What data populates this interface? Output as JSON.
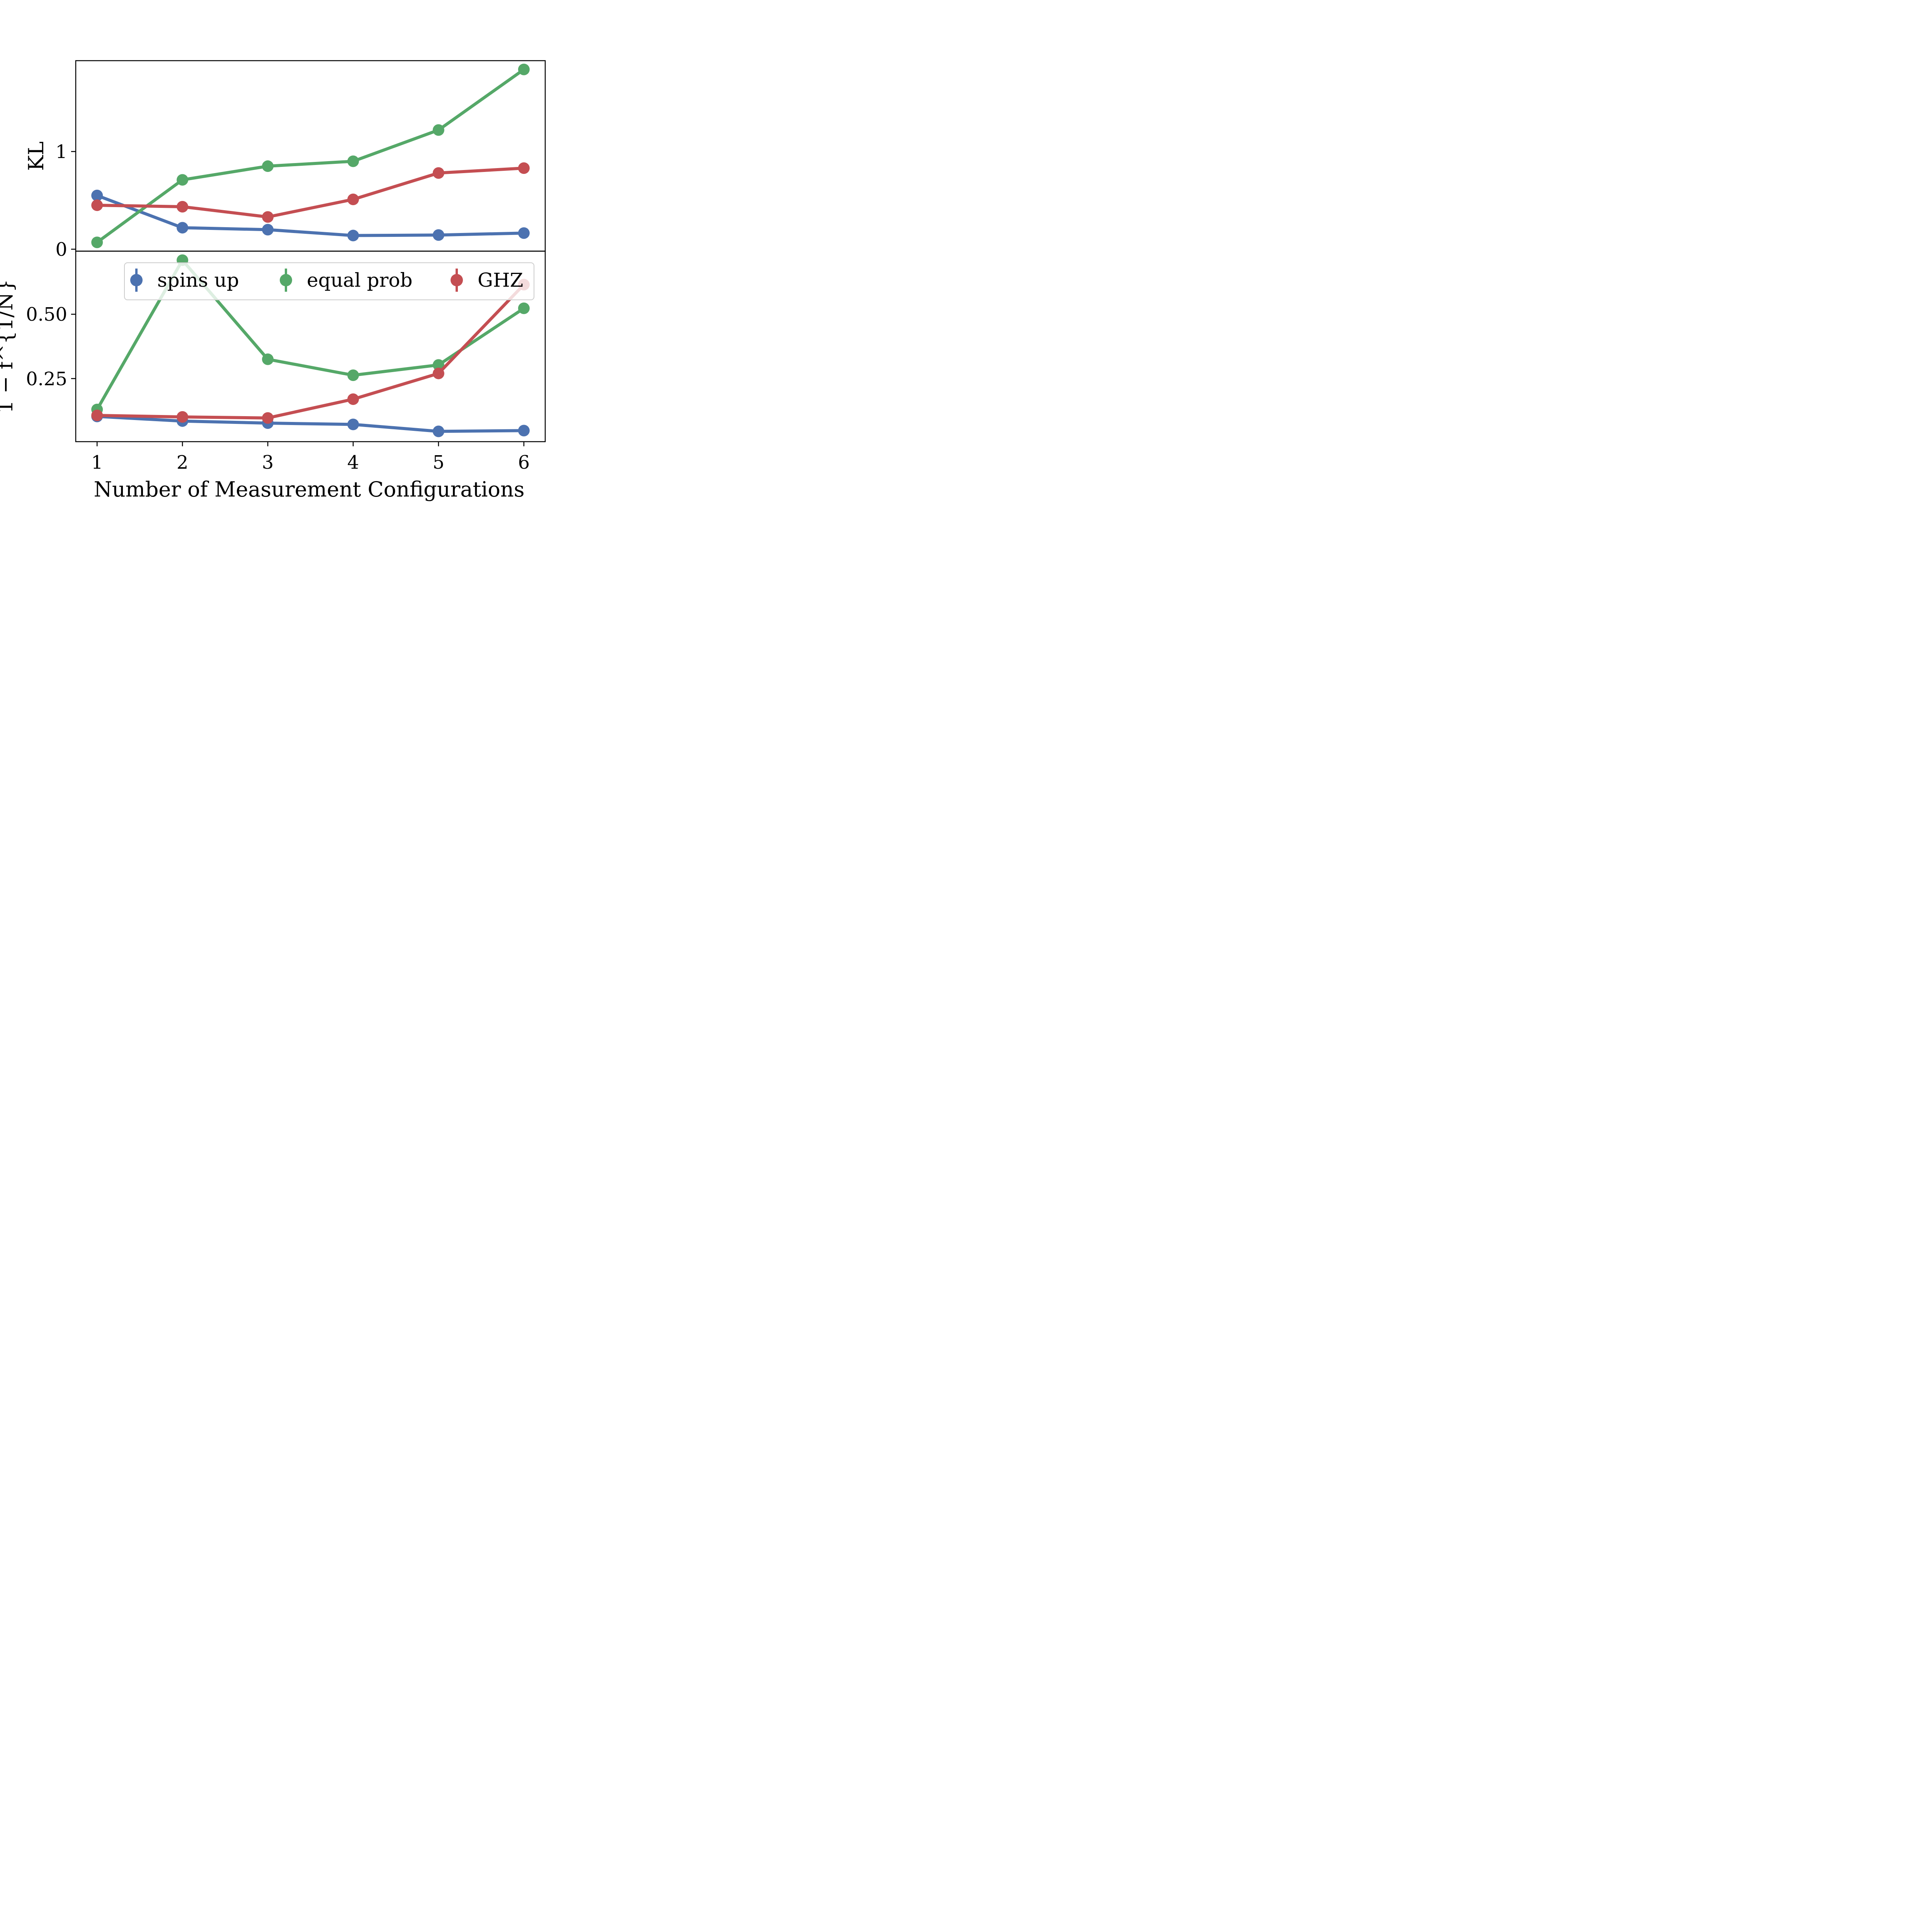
{
  "chart_data": {
    "type": "line",
    "xlabel": "Number of Measurement Configurations",
    "x": [
      1,
      2,
      3,
      4,
      5,
      6
    ],
    "legend": {
      "placement": "upper-center of lower panel",
      "entries": [
        {
          "label": "spins up",
          "color": "#4c72b0"
        },
        {
          "label": "equal prob",
          "color": "#55a868"
        },
        {
          "label": "GHZ",
          "color": "#c44e52"
        }
      ]
    },
    "panels": [
      {
        "ylabel": "KL",
        "ylim": [
          -0.02,
          1.93
        ],
        "yticks": [
          0,
          1
        ],
        "series": [
          {
            "name": "spins up",
            "color": "#4c72b0",
            "values": [
              0.55,
              0.22,
              0.2,
              0.14,
              0.145,
              0.165
            ]
          },
          {
            "name": "equal prob",
            "color": "#55a868",
            "values": [
              0.07,
              0.71,
              0.85,
              0.9,
              1.22,
              1.84
            ]
          },
          {
            "name": "GHZ",
            "color": "#c44e52",
            "values": [
              0.45,
              0.435,
              0.33,
              0.51,
              0.78,
              0.83
            ]
          }
        ]
      },
      {
        "ylabel": "1 − f^{1/N}",
        "ylim": [
          0.005,
          0.745
        ],
        "yticks": [
          0.25,
          0.5
        ],
        "ytick_labels": [
          "0.25",
          "0.50"
        ],
        "series": [
          {
            "name": "spins up",
            "color": "#4c72b0",
            "values": [
              0.103,
              0.085,
              0.077,
              0.072,
              0.045,
              0.048
            ]
          },
          {
            "name": "equal prob",
            "color": "#55a868",
            "values": [
              0.13,
              0.71,
              0.325,
              0.263,
              0.303,
              0.523
            ]
          },
          {
            "name": "GHZ",
            "color": "#c44e52",
            "values": [
              0.107,
              0.101,
              0.097,
              0.17,
              0.27,
              0.615
            ]
          }
        ]
      }
    ]
  }
}
